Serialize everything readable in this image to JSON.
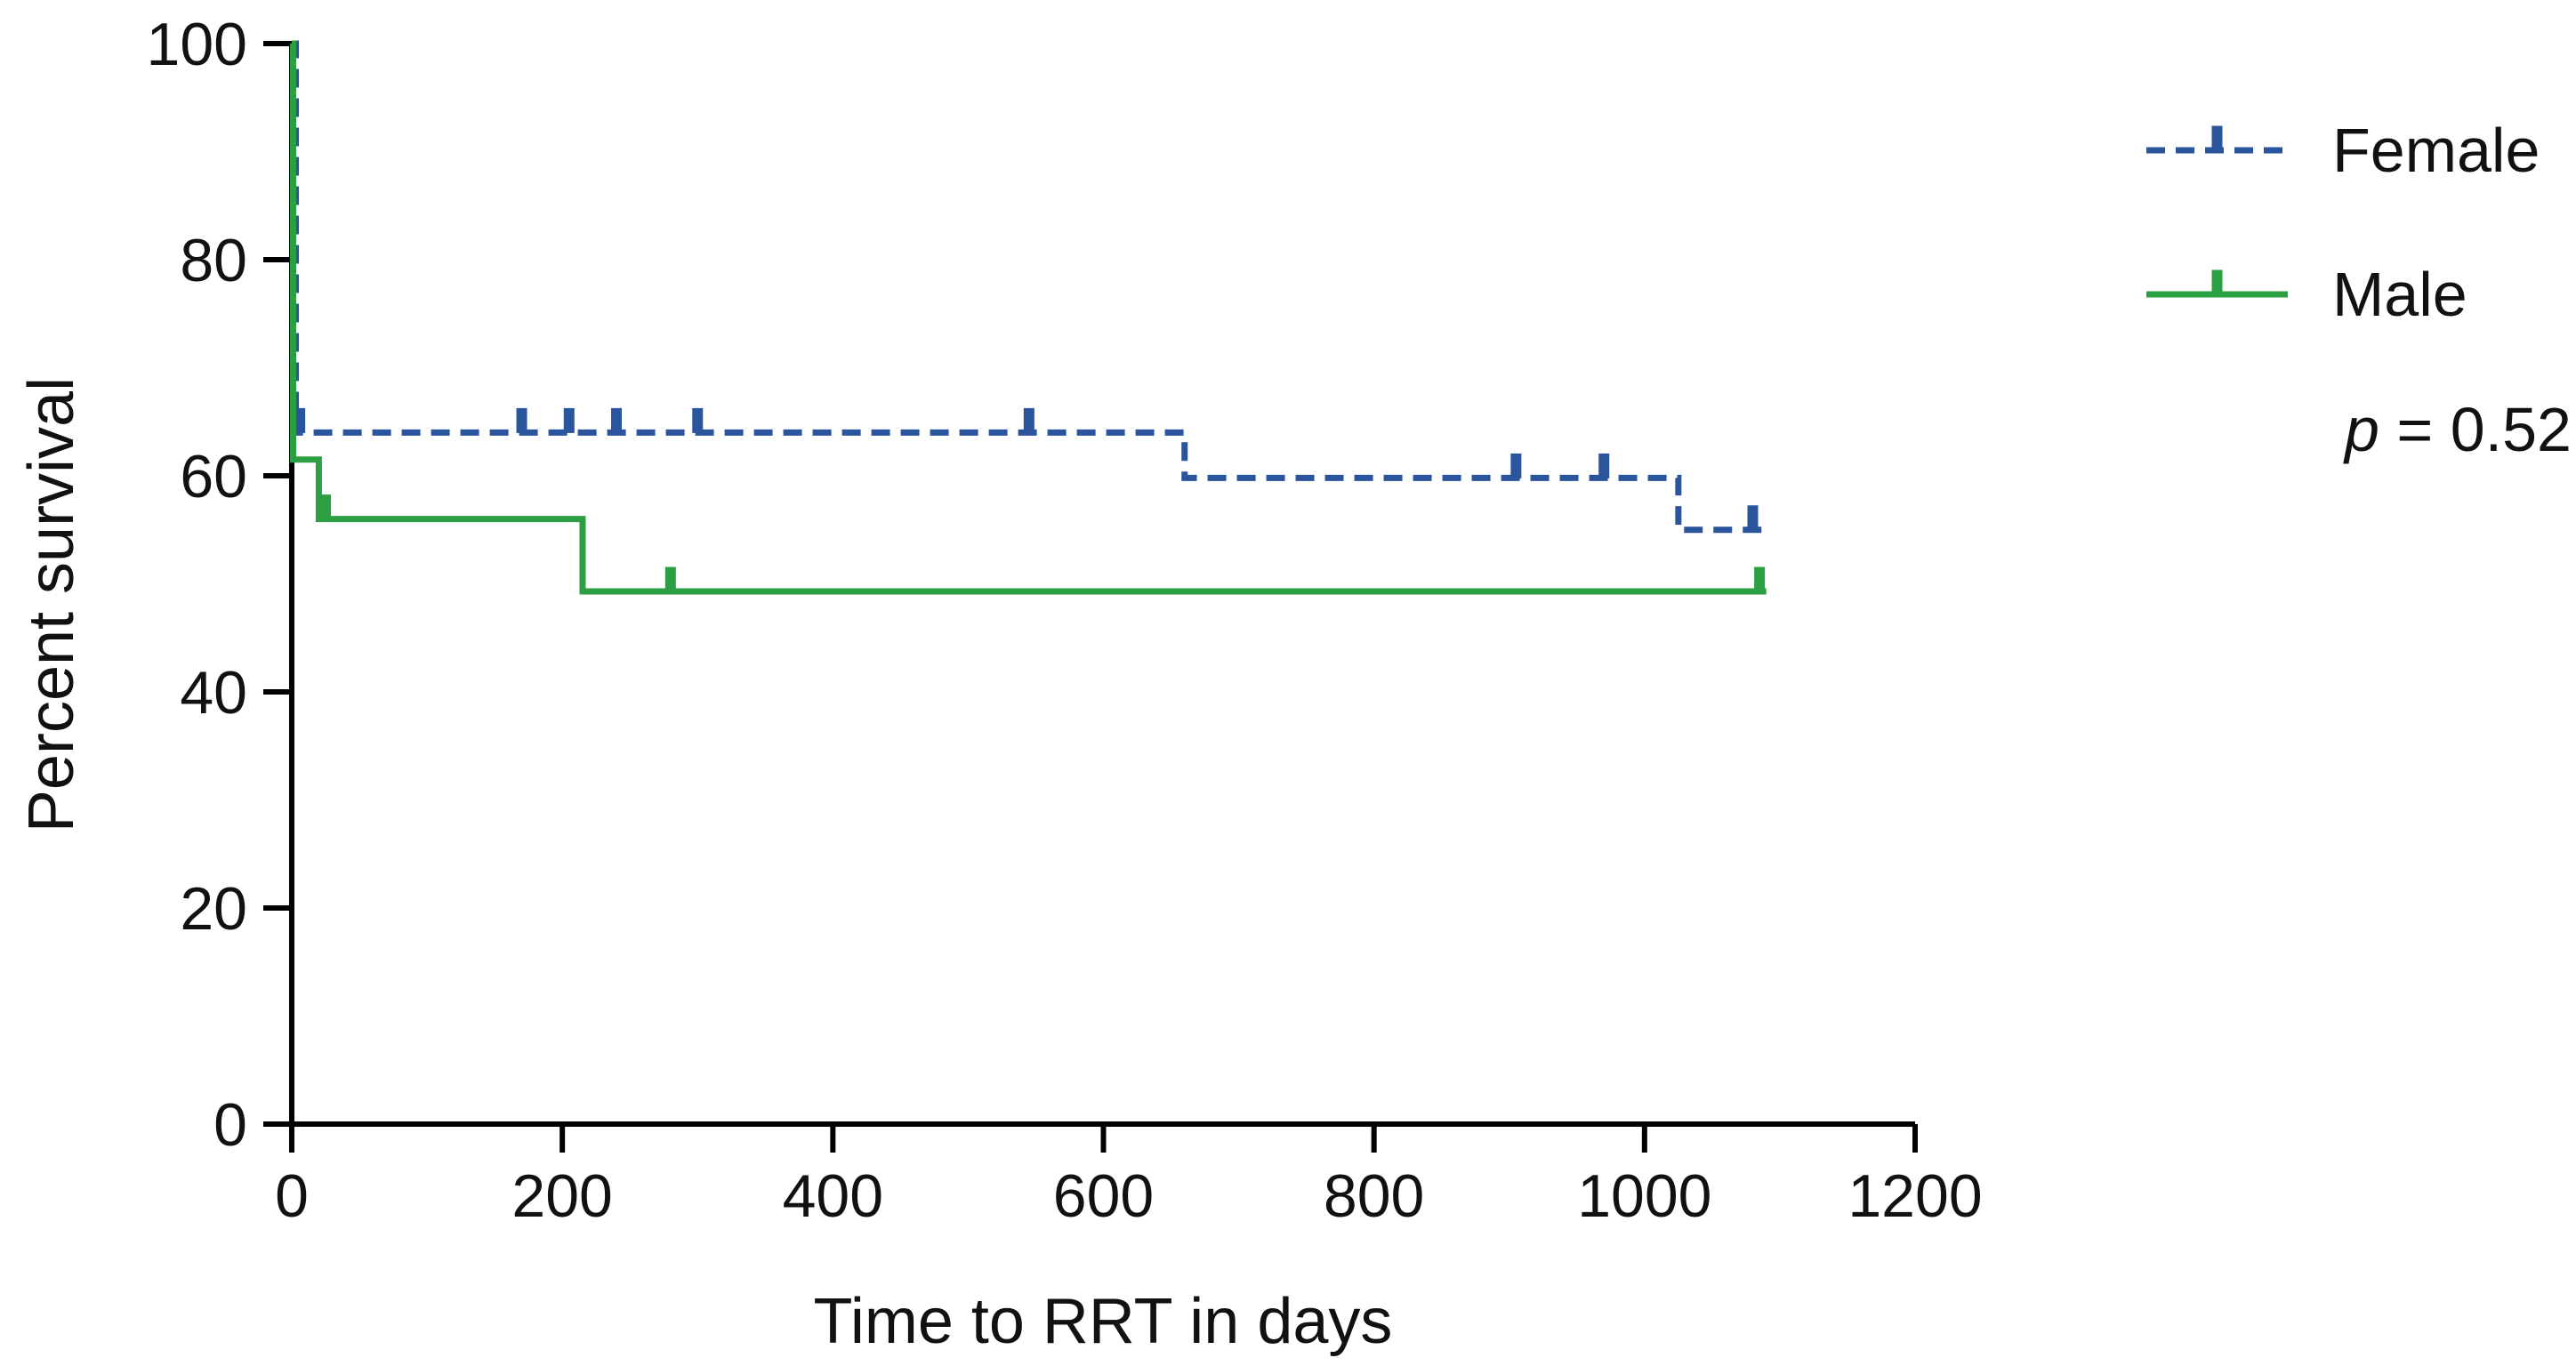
{
  "figure": {
    "background": "#ffffff",
    "axis_color": "#000000",
    "text_color": "#111111"
  },
  "chart_data": {
    "type": "line",
    "subtype": "kaplan_meier_step",
    "title": "",
    "xlabel": "Time to RRT in days",
    "ylabel": "Percent survival",
    "xlim": [
      0,
      1200
    ],
    "ylim": [
      0,
      100
    ],
    "x_ticks": [
      0,
      200,
      400,
      600,
      800,
      1000,
      1200
    ],
    "y_ticks": [
      0,
      20,
      40,
      60,
      80,
      100
    ],
    "grid": false,
    "legend_position": "outside-top-right",
    "p_value": {
      "symbol": "p",
      "rest": " = 0.52",
      "display": "p = 0.52"
    },
    "series": [
      {
        "name": "Female",
        "color": "#2a549c",
        "line_style": "dashed",
        "steps": [
          [
            0,
            100
          ],
          [
            3,
            64
          ],
          [
            660,
            59.8
          ],
          [
            1025,
            55
          ],
          [
            1090,
            55
          ]
        ],
        "censor_marks": [
          [
            6,
            64
          ],
          [
            170,
            64
          ],
          [
            205,
            64
          ],
          [
            240,
            64
          ],
          [
            300,
            64
          ],
          [
            545,
            64
          ],
          [
            905,
            59.8
          ],
          [
            970,
            59.8
          ],
          [
            1080,
            55
          ]
        ]
      },
      {
        "name": "Male",
        "color": "#2aa043",
        "line_style": "solid",
        "steps": [
          [
            0,
            100
          ],
          [
            1,
            61.5
          ],
          [
            20,
            56
          ],
          [
            215,
            49.3
          ],
          [
            1090,
            49.3
          ]
        ],
        "censor_marks": [
          [
            25,
            56
          ],
          [
            280,
            49.3
          ],
          [
            1085,
            49.3
          ]
        ]
      }
    ]
  }
}
